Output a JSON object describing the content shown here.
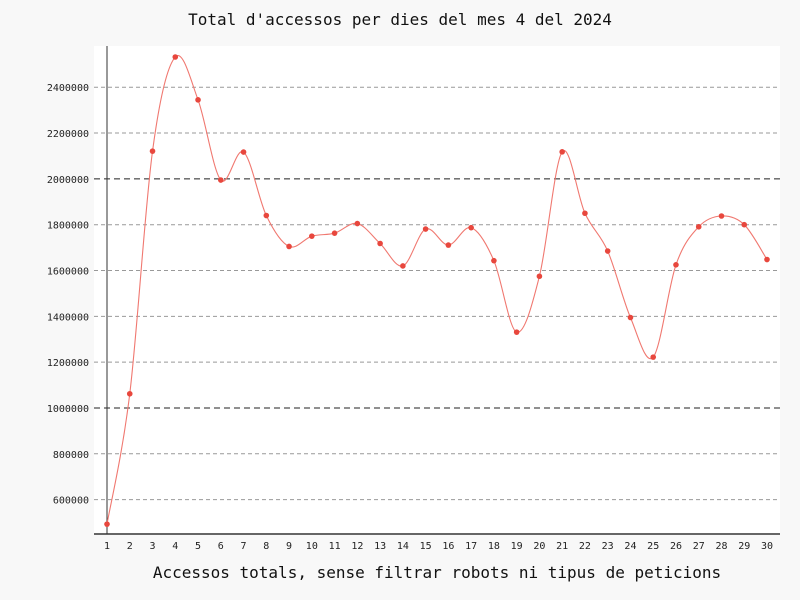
{
  "chart_data": {
    "type": "line",
    "title": "Total d'accessos per dies del mes 4 del 2024",
    "xlabel": "Accessos totals, sense filtrar robots ni tipus de peticions",
    "ylabel": "",
    "x": [
      1,
      2,
      3,
      4,
      5,
      6,
      7,
      8,
      9,
      10,
      11,
      12,
      13,
      14,
      15,
      16,
      17,
      18,
      19,
      20,
      21,
      22,
      23,
      24,
      25,
      26,
      27,
      28,
      29,
      30
    ],
    "series": [
      {
        "values": [
          493000,
          1062000,
          2121000,
          2532000,
          2345000,
          1995000,
          2117000,
          1840000,
          1705000,
          1750000,
          1763000,
          1805000,
          1718000,
          1620000,
          1781000,
          1711000,
          1787000,
          1643000,
          1331000,
          1575000,
          2118000,
          1850000,
          1685000,
          1395000,
          1222000,
          1625000,
          1791000,
          1838000,
          1800000,
          1648000
        ],
        "color": "#e8473d"
      }
    ],
    "yticks": [
      600000,
      800000,
      1000000,
      1200000,
      1400000,
      1600000,
      1800000,
      2000000,
      2200000,
      2400000
    ],
    "ylim": [
      450000,
      2580000
    ],
    "grid": "horizontal-dashed",
    "legend": "none",
    "colors": {
      "line": "#f07870",
      "point": "#e8473d",
      "grid": "#999999",
      "grid_major": "#222222",
      "plot_bg": "#ffffff",
      "page_bg": "#f8f8f8"
    }
  }
}
